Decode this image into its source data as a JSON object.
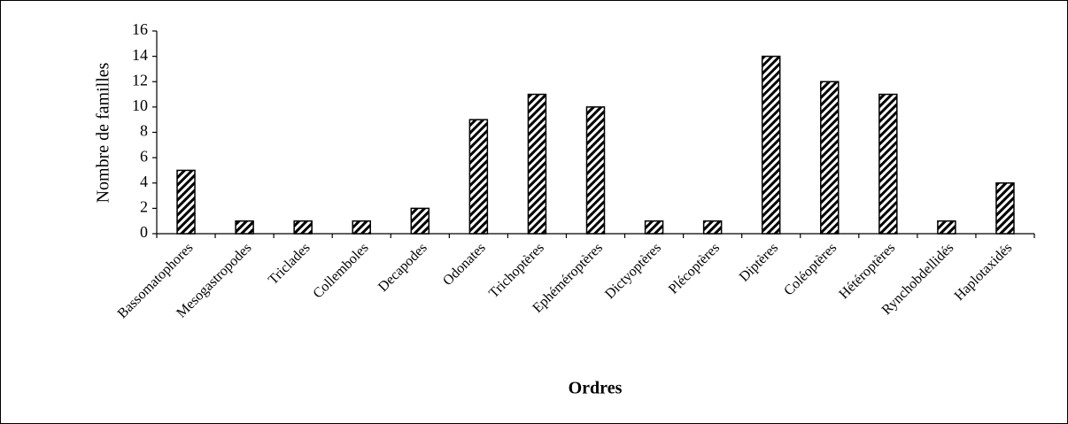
{
  "chart_data": {
    "type": "bar",
    "x_label": "Ordres",
    "y_label": "Nombre de familles",
    "categories": [
      "Bassomatophores",
      "Mesogastropodes",
      "Triclades",
      "Collemboles",
      "Decapodes",
      "Odonates",
      "Trichoptères",
      "Ephéméroptères",
      "Dictyoptères",
      "Plécoptères",
      "Diptères",
      "Coléoptères",
      "Hétéroptères",
      "Rynchobdellidés",
      "Haplotaxidés"
    ],
    "values": [
      5,
      1,
      1,
      1,
      2,
      9,
      11,
      10,
      1,
      1,
      14,
      12,
      11,
      1,
      4
    ],
    "color": "#000000",
    "ylim": [
      0,
      16
    ],
    "yticks": [
      0,
      2,
      4,
      6,
      8,
      10,
      12,
      14,
      16
    ]
  }
}
